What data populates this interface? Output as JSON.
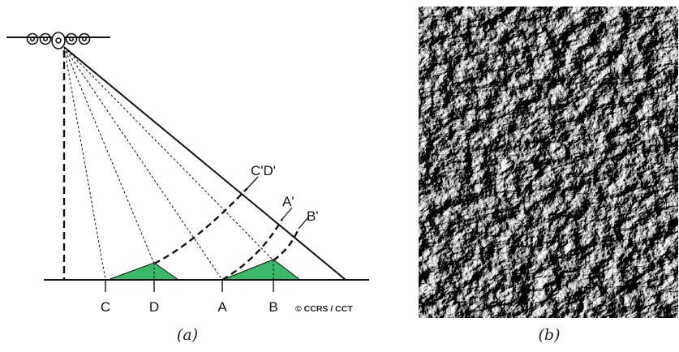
{
  "diagram": {
    "ground_labels": {
      "c": "C",
      "d": "D",
      "a": "A",
      "b": "B"
    },
    "slant_labels": {
      "cd": "C'D'",
      "a": "A'",
      "b": "B'"
    },
    "copyright": "© CCRS / CCT",
    "terrain_color": "#3cb86a",
    "icons": [
      "airplane-icon"
    ]
  },
  "captions": {
    "left": "(a)",
    "right": "(b)"
  },
  "radar_image": {
    "description_icon": "sar-mountain-image"
  }
}
